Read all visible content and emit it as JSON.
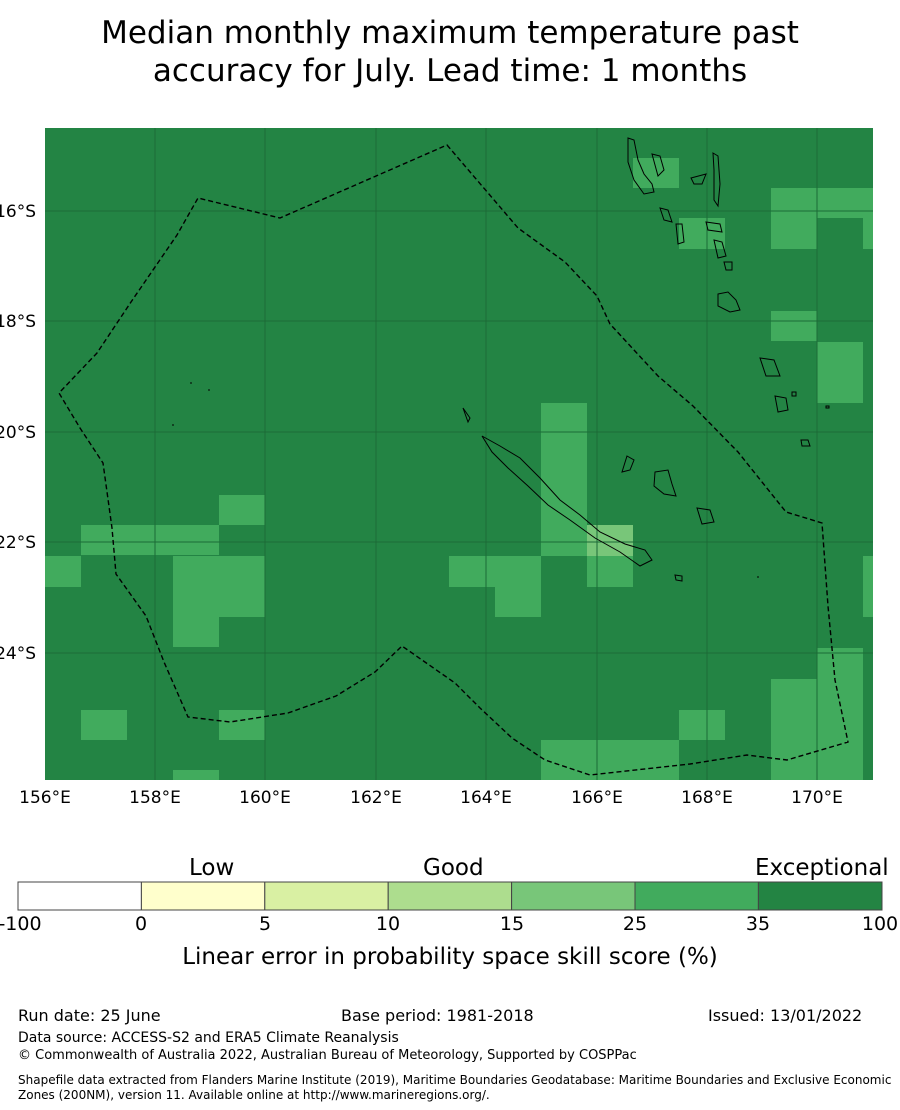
{
  "title_line1": "Median monthly maximum temperature past",
  "title_line2": "accuracy for July. Lead time: 1 months",
  "map": {
    "lon_range": [
      156,
      171
    ],
    "lat_range": [
      -26.4,
      -14.5
    ],
    "lon_ticks": [
      "156°E",
      "158°E",
      "160°E",
      "162°E",
      "164°E",
      "166°E",
      "168°E",
      "170°E"
    ],
    "lat_ticks": [
      "16°S",
      "18°S",
      "20°S",
      "22°S",
      "24°S"
    ],
    "background_category": "35-100",
    "cells_25_35_description": "lighter green grid cells",
    "colors": {
      "exceptional": "#238444",
      "band_25_35": "#41ab5d",
      "band_15_25": "#78c679",
      "eez_boundary": "#000000"
    }
  },
  "legend": {
    "headers": [
      "Low",
      "Good",
      "Exceptional"
    ],
    "ticks": [
      "-100",
      "0",
      "5",
      "10",
      "15",
      "25",
      "35",
      "100"
    ],
    "colors": [
      "#ffffff",
      "#ffffcc",
      "#d9f0a3",
      "#addd8e",
      "#78c679",
      "#41ab5d",
      "#238443"
    ],
    "label": "Linear error in probability space skill score (%)"
  },
  "footer": {
    "run_date": "Run date: 25 June",
    "base_period": "Base period: 1981-2018",
    "issued": "Issued: 13/01/2022",
    "data_source": "Data source: ACCESS-S2 and ERA5 Climate Reanalysis",
    "copyright": "© Commonwealth of Australia 2022, Australian Bureau of Meteorology, Supported by COSPPac",
    "shapefile": "Shapefile data extracted from Flanders Marine Institute (2019), Maritime Boundaries Geodatabase: Maritime Boundaries and Exclusive Economic Zones (200NM), version 11. Available online at http://www.marineregions.org/."
  }
}
